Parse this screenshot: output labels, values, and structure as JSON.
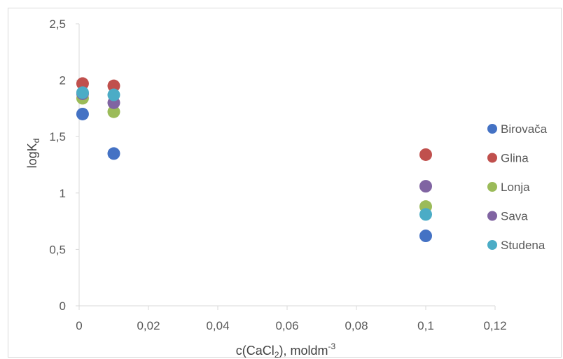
{
  "chart_data": {
    "type": "scatter",
    "xlabel": {
      "main": "c(CaCl",
      "sub": "2",
      "rest": "), moldm",
      "sup": "-3"
    },
    "ylabel": {
      "main": "logK",
      "sub": "d"
    },
    "xlim": [
      0,
      0.12
    ],
    "ylim": [
      0,
      2.5
    ],
    "x_ticks": [
      0,
      0.02,
      0.04,
      0.06,
      0.08,
      0.1,
      0.12
    ],
    "x_tick_labels": [
      "0",
      "0,02",
      "0,04",
      "0,06",
      "0,08",
      "0,1",
      "0,12"
    ],
    "y_ticks": [
      0,
      0.5,
      1,
      1.5,
      2,
      2.5
    ],
    "y_tick_labels": [
      "0",
      "0,5",
      "1",
      "1,5",
      "2",
      "2,5"
    ],
    "grid": false,
    "legend_position": "right",
    "series": [
      {
        "name": "Birovača",
        "color": "#4472c4",
        "x": [
          0.001,
          0.01,
          0.1
        ],
        "y": [
          1.7,
          1.35,
          0.62
        ]
      },
      {
        "name": "Glina",
        "color": "#c0504d",
        "x": [
          0.001,
          0.01,
          0.1
        ],
        "y": [
          1.97,
          1.95,
          1.34
        ]
      },
      {
        "name": "Lonja",
        "color": "#9bbb59",
        "x": [
          0.001,
          0.01,
          0.1
        ],
        "y": [
          1.84,
          1.72,
          0.88
        ]
      },
      {
        "name": "Sava",
        "color": "#8064a2",
        "x": [
          0.001,
          0.01,
          0.1
        ],
        "y": [
          1.88,
          1.8,
          1.06
        ]
      },
      {
        "name": "Studena",
        "color": "#4bacc6",
        "x": [
          0.001,
          0.01,
          0.1
        ],
        "y": [
          1.89,
          1.87,
          0.81
        ]
      }
    ]
  }
}
